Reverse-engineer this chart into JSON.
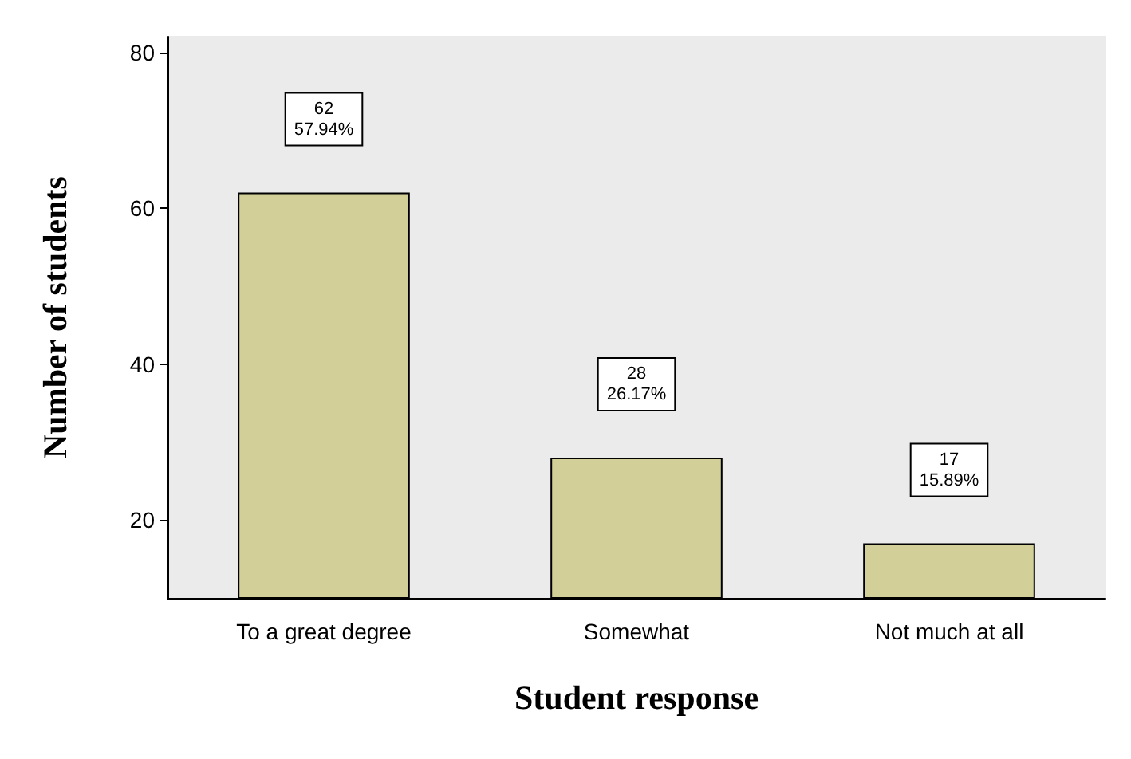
{
  "chart_data": {
    "type": "bar",
    "xlabel": "Student response",
    "ylabel": "Number of students",
    "categories": [
      "To a great degree",
      "Somewhat",
      "Not much at all"
    ],
    "values": [
      62,
      28,
      17
    ],
    "color": "#d3cf98",
    "value_labels": [
      "62\n57.94%",
      "28\n26.17%",
      "17\n15.89%"
    ],
    "ylim": [
      10,
      82
    ],
    "yticks": [
      20,
      40,
      60,
      80
    ],
    "grid": false
  }
}
